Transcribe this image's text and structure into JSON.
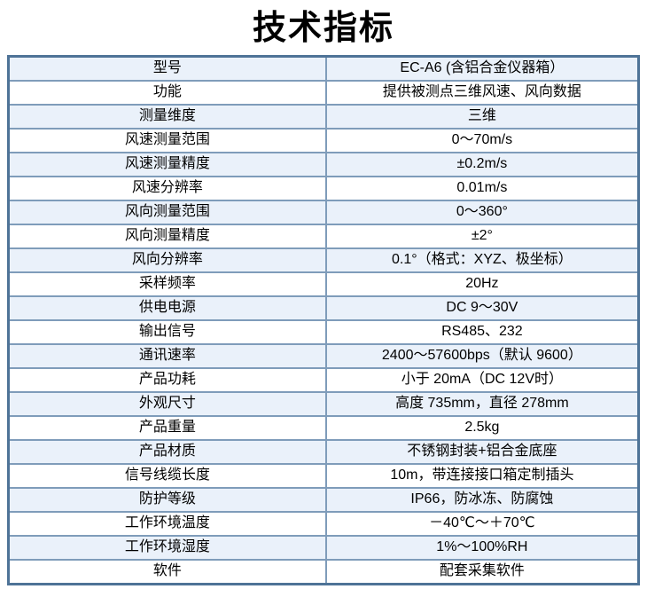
{
  "title": "技术指标",
  "colors": {
    "outer_border": "#4e7397",
    "inner_border": "#7f9cba",
    "alt_row_bg": "#eaf1fa",
    "plain_row_bg": "#ffffff",
    "text": "#000000"
  },
  "table": {
    "rows": [
      {
        "label": "型号",
        "value": "EC-A6 (含铝合金仪器箱）"
      },
      {
        "label": "功能",
        "value": "提供被测点三维风速、风向数据"
      },
      {
        "label": "测量维度",
        "value": "三维"
      },
      {
        "label": "风速测量范围",
        "value": "0～70m/s"
      },
      {
        "label": "风速测量精度",
        "value": "±0.2m/s"
      },
      {
        "label": "风速分辨率",
        "value": "0.01m/s"
      },
      {
        "label": "风向测量范围",
        "value": "0～360°"
      },
      {
        "label": "风向测量精度",
        "value": "±2°"
      },
      {
        "label": "风向分辨率",
        "value": "0.1°（格式：XYZ、极坐标）"
      },
      {
        "label": "采样频率",
        "value": "20Hz"
      },
      {
        "label": "供电电源",
        "value": "DC 9～30V"
      },
      {
        "label": "输出信号",
        "value": "RS485、232"
      },
      {
        "label": "通讯速率",
        "value": "2400～57600bps（默认 9600）"
      },
      {
        "label": "产品功耗",
        "value": "小于 20mA（DC 12V时）"
      },
      {
        "label": "外观尺寸",
        "value": "高度 735mm，直径 278mm"
      },
      {
        "label": "产品重量",
        "value": "2.5kg"
      },
      {
        "label": "产品材质",
        "value": "不锈钢封装+铝合金底座"
      },
      {
        "label": "信号线缆长度",
        "value": "10m，带连接接口箱定制插头"
      },
      {
        "label": "防护等级",
        "value": "IP66，防冰冻、防腐蚀"
      },
      {
        "label": "工作环境温度",
        "value": "－40℃～＋70℃"
      },
      {
        "label": "工作环境湿度",
        "value": "1%～100%RH"
      },
      {
        "label": "软件",
        "value": "配套采集软件"
      }
    ]
  }
}
